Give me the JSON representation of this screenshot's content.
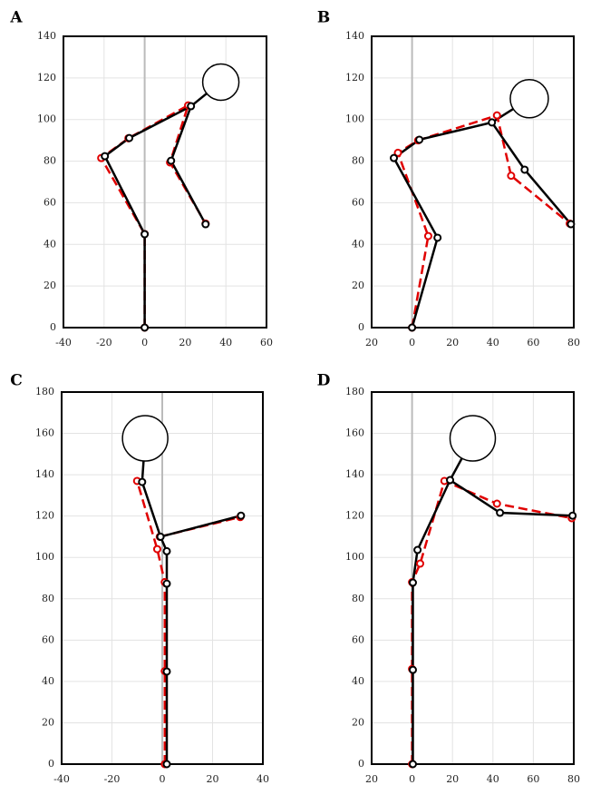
{
  "chart_data": [
    {
      "type": "stick",
      "label": "A",
      "xlim": [
        -40,
        60
      ],
      "ylim": [
        0,
        140
      ],
      "xticks": [
        -40,
        -20,
        0,
        20,
        40,
        60
      ],
      "yticks": [
        0,
        20,
        40,
        60,
        80,
        100,
        120,
        140
      ],
      "grid": true,
      "head": {
        "x": 37.5,
        "y": 118
      },
      "series": [
        {
          "color": "#e00000",
          "dashed": true,
          "x": [
            0,
            0,
            -21.4,
            -8,
            21.4,
            12.5,
            30
          ],
          "y": [
            0,
            45,
            81.5,
            91,
            106.8,
            79.4,
            50
          ]
        },
        {
          "color": "#000000",
          "dashed": false,
          "x": [
            0,
            0,
            -19.6,
            -7.6,
            22.8,
            13,
            30
          ],
          "y": [
            0,
            44.9,
            82.4,
            91.1,
            106.4,
            80.2,
            49.7
          ]
        }
      ]
    },
    {
      "type": "stick",
      "label": "B",
      "xlim": [
        -20,
        80
      ],
      "ylim": [
        0,
        140
      ],
      "xticks": [
        {
          "value": -20,
          "label": "20"
        },
        0,
        20,
        40,
        60,
        80
      ],
      "yticks": [
        0,
        20,
        40,
        60,
        80,
        100,
        120,
        140
      ],
      "grid": true,
      "head": {
        "x": 58,
        "y": 110
      },
      "series": [
        {
          "color": "#e00000",
          "dashed": true,
          "x": [
            0,
            8,
            -7,
            3,
            42,
            49,
            78
          ],
          "y": [
            0,
            44,
            84,
            90,
            102,
            73,
            50
          ]
        },
        {
          "color": "#000000",
          "dashed": false,
          "x": [
            0,
            12.6,
            -9,
            3.6,
            39.5,
            55.7,
            78.6
          ],
          "y": [
            0,
            43.2,
            81.5,
            90.3,
            98.6,
            75.9,
            49.7
          ]
        }
      ]
    },
    {
      "type": "stick",
      "label": "C",
      "xlim": [
        -40,
        40
      ],
      "ylim": [
        0,
        180
      ],
      "xticks": [
        -40,
        -20,
        0,
        20,
        40
      ],
      "yticks": [
        0,
        20,
        40,
        60,
        80,
        100,
        120,
        140,
        160,
        180
      ],
      "grid": true,
      "head": {
        "x": -6.8,
        "y": 157.6
      },
      "series": [
        {
          "color": "#e00000",
          "dashed": true,
          "x": [
            1,
            1,
            1,
            -2,
            -10,
            null,
            -1,
            31
          ],
          "y": [
            0,
            45,
            88,
            104,
            137,
            null,
            110,
            119.5
          ]
        },
        {
          "color": "#000000",
          "dashed": false,
          "x": [
            1.8,
            1.8,
            1.8,
            1.8,
            -0.7,
            -8,
            null,
            -0.7,
            31.3
          ],
          "y": [
            0,
            44.8,
            87.3,
            103,
            110,
            136.5,
            null,
            110,
            120.2
          ]
        }
      ]
    },
    {
      "type": "stick",
      "label": "D",
      "xlim": [
        -20,
        80
      ],
      "ylim": [
        0,
        180
      ],
      "xticks": [
        {
          "value": -20,
          "label": "20"
        },
        0,
        20,
        40,
        60,
        80
      ],
      "yticks": [
        0,
        20,
        40,
        60,
        80,
        100,
        120,
        140,
        160,
        180
      ],
      "grid": true,
      "head": {
        "x": 30,
        "y": 157.6
      },
      "series": [
        {
          "color": "#e00000",
          "dashed": true,
          "x": [
            0,
            0,
            0,
            4,
            16,
            42,
            79
          ],
          "y": [
            0,
            46,
            88,
            97,
            137,
            126,
            119
          ]
        },
        {
          "color": "#000000",
          "dashed": false,
          "x": [
            0.4,
            0.4,
            0.4,
            2.7,
            18.8,
            43.5,
            79.4
          ],
          "y": [
            0,
            45.6,
            87.8,
            103.6,
            137.4,
            121.6,
            120.2
          ]
        }
      ]
    }
  ]
}
